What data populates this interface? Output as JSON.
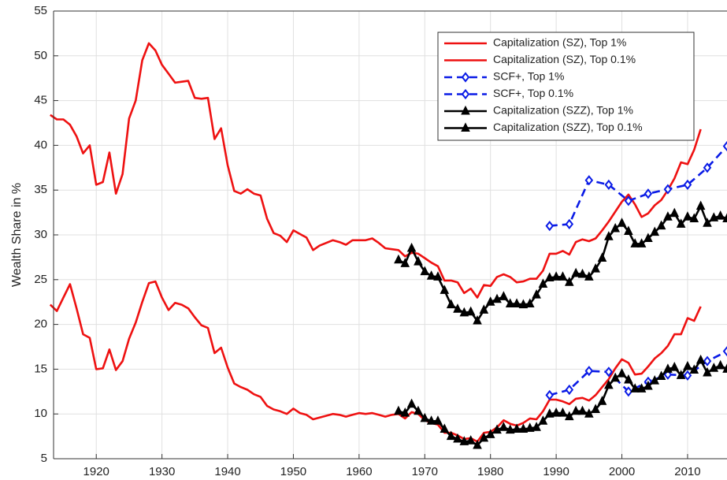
{
  "chart_data": {
    "type": "line",
    "y_label": "Wealth Share in %",
    "xlim": [
      1913.5,
      2016
    ],
    "xticks": [
      1920,
      1930,
      1940,
      1950,
      1960,
      1970,
      1980,
      1990,
      2000,
      2010
    ],
    "ylim": [
      5,
      55
    ],
    "yticks": [
      5,
      10,
      15,
      20,
      25,
      30,
      35,
      40,
      45,
      50,
      55
    ],
    "grid": true,
    "legend": "upper right",
    "series": [
      {
        "name": "Capitalization (SZ), Top 1%",
        "color": "#ee1111",
        "dashed": false,
        "marker": null,
        "x": [
          1913,
          1914,
          1915,
          1916,
          1917,
          1918,
          1919,
          1920,
          1921,
          1922,
          1923,
          1924,
          1925,
          1926,
          1927,
          1928,
          1929,
          1930,
          1931,
          1932,
          1933,
          1934,
          1935,
          1936,
          1937,
          1938,
          1939,
          1940,
          1941,
          1942,
          1943,
          1944,
          1945,
          1946,
          1947,
          1948,
          1949,
          1950,
          1951,
          1952,
          1953,
          1954,
          1955,
          1956,
          1957,
          1958,
          1959,
          1960,
          1961,
          1962,
          1963,
          1964,
          1965,
          1966,
          1967,
          1968,
          1969,
          1970,
          1971,
          1972,
          1973,
          1974,
          1975,
          1976,
          1977,
          1978,
          1979,
          1980,
          1981,
          1982,
          1983,
          1984,
          1985,
          1986,
          1987,
          1988,
          1989,
          1990,
          1991,
          1992,
          1993,
          1994,
          1995,
          1996,
          1997,
          1998,
          1999,
          2000,
          2001,
          2002,
          2003,
          2004,
          2005,
          2006,
          2007,
          2008,
          2009,
          2010,
          2011,
          2012
        ],
        "values": [
          43.4,
          42.9,
          42.9,
          42.3,
          41.0,
          39.1,
          40.0,
          35.6,
          35.9,
          39.2,
          34.6,
          36.8,
          43.0,
          45.0,
          49.5,
          51.4,
          50.6,
          49.0,
          48.0,
          47.0,
          47.1,
          47.2,
          45.3,
          45.2,
          45.3,
          40.7,
          41.9,
          37.8,
          34.9,
          34.6,
          35.1,
          34.6,
          34.4,
          31.8,
          30.2,
          29.9,
          29.2,
          30.5,
          30.1,
          29.7,
          28.3,
          28.8,
          29.1,
          29.4,
          29.2,
          28.9,
          29.4,
          29.4,
          29.4,
          29.6,
          29.1,
          28.5,
          28.4,
          28.3,
          27.6,
          28.0,
          27.9,
          27.4,
          26.9,
          26.5,
          24.9,
          24.9,
          24.7,
          23.5,
          24.0,
          23.0,
          24.4,
          24.3,
          25.3,
          25.6,
          25.3,
          24.7,
          24.8,
          25.1,
          25.1,
          26.0,
          27.9,
          27.9,
          28.2,
          27.8,
          29.2,
          29.5,
          29.3,
          29.6,
          30.5,
          31.5,
          32.6,
          33.7,
          34.5,
          33.4,
          32.0,
          32.4,
          33.3,
          33.9,
          35.0,
          36.3,
          38.1,
          37.9,
          39.5,
          41.8
        ]
      },
      {
        "name": "Capitalization (SZ), Top 0.1%",
        "color": "#ee1111",
        "dashed": false,
        "marker": null,
        "x": [
          1913,
          1914,
          1915,
          1916,
          1917,
          1918,
          1919,
          1920,
          1921,
          1922,
          1923,
          1924,
          1925,
          1926,
          1927,
          1928,
          1929,
          1930,
          1931,
          1932,
          1933,
          1934,
          1935,
          1936,
          1937,
          1938,
          1939,
          1940,
          1941,
          1942,
          1943,
          1944,
          1945,
          1946,
          1947,
          1948,
          1949,
          1950,
          1951,
          1952,
          1953,
          1954,
          1955,
          1956,
          1957,
          1958,
          1959,
          1960,
          1961,
          1962,
          1963,
          1964,
          1965,
          1966,
          1967,
          1968,
          1969,
          1970,
          1971,
          1972,
          1973,
          1974,
          1975,
          1976,
          1977,
          1978,
          1979,
          1980,
          1981,
          1982,
          1983,
          1984,
          1985,
          1986,
          1987,
          1988,
          1989,
          1990,
          1991,
          1992,
          1993,
          1994,
          1995,
          1996,
          1997,
          1998,
          1999,
          2000,
          2001,
          2002,
          2003,
          2004,
          2005,
          2006,
          2007,
          2008,
          2009,
          2010,
          2011,
          2012
        ],
        "values": [
          22.2,
          21.5,
          23.0,
          24.5,
          21.8,
          18.9,
          18.5,
          15.0,
          15.1,
          17.2,
          14.9,
          15.9,
          18.4,
          20.2,
          22.5,
          24.6,
          24.8,
          23.0,
          21.6,
          22.4,
          22.2,
          21.8,
          20.8,
          19.9,
          19.6,
          16.8,
          17.4,
          15.2,
          13.4,
          13.0,
          12.7,
          12.2,
          11.9,
          10.9,
          10.5,
          10.3,
          10.0,
          10.6,
          10.1,
          9.9,
          9.4,
          9.6,
          9.8,
          10.0,
          9.9,
          9.7,
          9.9,
          10.1,
          10.0,
          10.1,
          9.9,
          9.7,
          9.9,
          10.0,
          9.5,
          10.2,
          10.0,
          9.3,
          9.0,
          8.8,
          7.9,
          7.9,
          7.6,
          7.2,
          7.3,
          6.9,
          7.9,
          8.0,
          8.5,
          9.3,
          8.9,
          8.7,
          9.0,
          9.5,
          9.4,
          10.3,
          11.6,
          11.6,
          11.4,
          11.1,
          11.7,
          11.8,
          11.5,
          12.1,
          13.0,
          13.9,
          15.1,
          16.1,
          15.7,
          14.4,
          14.5,
          15.3,
          16.2,
          16.8,
          17.6,
          18.9,
          18.9,
          20.7,
          20.4,
          22.0
        ]
      },
      {
        "name": "SCF+, Top 1%",
        "color": "#0a1be6",
        "dashed": true,
        "marker": "diamond",
        "x": [
          1989,
          1992,
          1995,
          1998,
          2001,
          2004,
          2007,
          2010,
          2013,
          2016
        ],
        "values": [
          31.0,
          31.2,
          36.1,
          35.6,
          33.8,
          34.6,
          35.1,
          35.6,
          37.5,
          39.9
        ]
      },
      {
        "name": "SCF+, Top 0.1%",
        "color": "#0a1be6",
        "dashed": true,
        "marker": "diamond",
        "x": [
          1989,
          1992,
          1995,
          1998,
          2001,
          2004,
          2007,
          2010,
          2013,
          2016
        ],
        "values": [
          12.1,
          12.7,
          14.8,
          14.7,
          12.5,
          13.6,
          14.4,
          14.3,
          15.9,
          17.0
        ]
      },
      {
        "name": "Capitalization (SZZ), Top 1%",
        "color": "#000000",
        "dashed": false,
        "marker": "triangle",
        "x": [
          1966,
          1967,
          1968,
          1969,
          1970,
          1971,
          1972,
          1973,
          1974,
          1975,
          1976,
          1977,
          1978,
          1979,
          1980,
          1981,
          1982,
          1983,
          1984,
          1985,
          1986,
          1987,
          1988,
          1989,
          1990,
          1991,
          1992,
          1993,
          1994,
          1995,
          1996,
          1997,
          1998,
          1999,
          2000,
          2001,
          2002,
          2003,
          2004,
          2005,
          2006,
          2007,
          2008,
          2009,
          2010,
          2011,
          2012,
          2013,
          2014,
          2015,
          2016
        ],
        "values": [
          27.2,
          26.8,
          28.5,
          27.0,
          25.9,
          25.4,
          25.3,
          23.8,
          22.2,
          21.7,
          21.3,
          21.4,
          20.4,
          21.6,
          22.5,
          22.8,
          23.1,
          22.3,
          22.3,
          22.2,
          22.3,
          23.3,
          24.5,
          25.2,
          25.3,
          25.3,
          24.7,
          25.7,
          25.6,
          25.3,
          26.2,
          27.4,
          29.8,
          30.7,
          31.3,
          30.4,
          29.0,
          29.0,
          29.6,
          30.3,
          31.0,
          32.0,
          32.4,
          31.2,
          32.0,
          31.8,
          33.2,
          31.3,
          31.9,
          32.1,
          31.8
        ]
      },
      {
        "name": "Capitalization (SZZ), Top 0.1%",
        "color": "#000000",
        "dashed": false,
        "marker": "triangle",
        "x": [
          1966,
          1967,
          1968,
          1969,
          1970,
          1971,
          1972,
          1973,
          1974,
          1975,
          1976,
          1977,
          1978,
          1979,
          1980,
          1981,
          1982,
          1983,
          1984,
          1985,
          1986,
          1987,
          1988,
          1989,
          1990,
          1991,
          1992,
          1993,
          1994,
          1995,
          1996,
          1997,
          1998,
          1999,
          2000,
          2001,
          2002,
          2003,
          2004,
          2005,
          2006,
          2007,
          2008,
          2009,
          2010,
          2011,
          2012,
          2013,
          2014,
          2015,
          2016
        ],
        "values": [
          10.3,
          10.1,
          11.1,
          10.3,
          9.5,
          9.2,
          9.2,
          8.3,
          7.5,
          7.2,
          6.9,
          7.0,
          6.5,
          7.3,
          7.7,
          8.2,
          8.5,
          8.2,
          8.3,
          8.3,
          8.4,
          8.5,
          9.2,
          10.0,
          10.1,
          10.1,
          9.7,
          10.3,
          10.3,
          10.0,
          10.5,
          11.4,
          13.2,
          14.0,
          14.5,
          13.8,
          12.8,
          12.8,
          13.1,
          13.7,
          14.2,
          15.0,
          15.2,
          14.3,
          15.3,
          14.9,
          16.0,
          14.6,
          15.1,
          15.4,
          15.0
        ]
      }
    ]
  }
}
